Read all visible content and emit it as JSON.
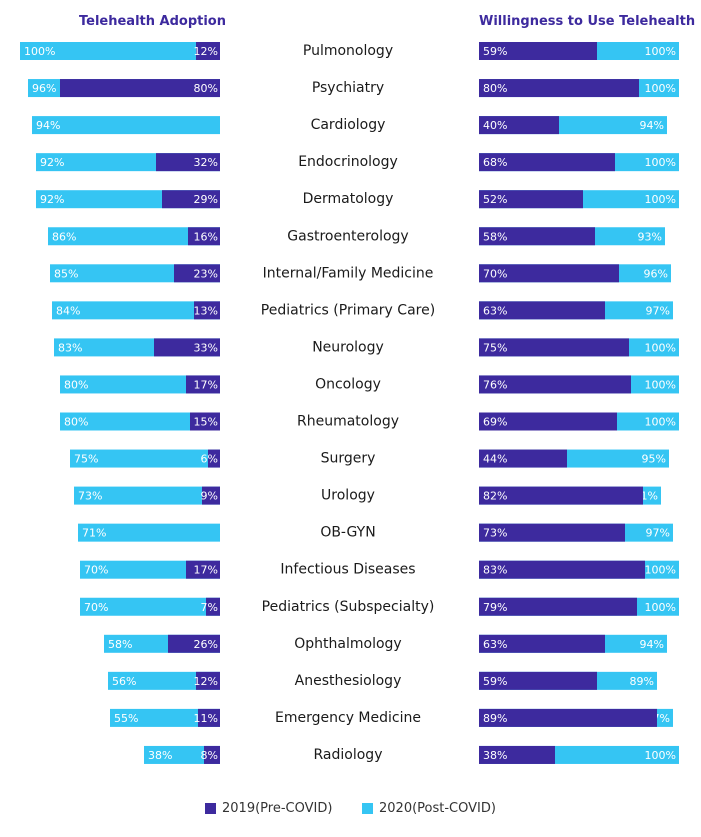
{
  "chart_data": [
    {
      "type": "bar",
      "orientation": "horizontal",
      "title": "Telehealth Adoption",
      "categories": [
        "Pulmonology",
        "Psychiatry",
        "Cardiology",
        "Endocrinology",
        "Dermatology",
        "Gastroenterology",
        "Internal/Family Medicine",
        "Pediatrics (Primary Care)",
        "Neurology",
        "Oncology",
        "Rheumatology",
        "Surgery",
        "Urology",
        "OB-GYN",
        "Infectious Diseases",
        "Pediatrics (Subspecialty)",
        "Ophthalmology",
        "Anesthesiology",
        "Emergency Medicine",
        "Radiology"
      ],
      "series": [
        {
          "name": "2019(Pre-COVID)",
          "values": [
            12,
            80,
            null,
            32,
            29,
            16,
            23,
            13,
            33,
            17,
            15,
            6,
            9,
            null,
            17,
            7,
            26,
            12,
            11,
            8
          ]
        },
        {
          "name": "2020(Post-COVID)",
          "values": [
            100,
            96,
            94,
            92,
            92,
            86,
            85,
            84,
            83,
            80,
            80,
            75,
            73,
            71,
            70,
            70,
            58,
            56,
            55,
            38
          ]
        }
      ],
      "xlim": [
        0,
        100
      ]
    },
    {
      "type": "bar",
      "orientation": "horizontal",
      "title": "Willingness to Use Telehealth",
      "categories": [
        "Pulmonology",
        "Psychiatry",
        "Cardiology",
        "Endocrinology",
        "Dermatology",
        "Gastroenterology",
        "Internal/Family Medicine",
        "Pediatrics (Primary Care)",
        "Neurology",
        "Oncology",
        "Rheumatology",
        "Surgery",
        "Urology",
        "OB-GYN",
        "Infectious Diseases",
        "Pediatrics (Subspecialty)",
        "Ophthalmology",
        "Anesthesiology",
        "Emergency Medicine",
        "Radiology"
      ],
      "series": [
        {
          "name": "2019(Pre-COVID)",
          "values": [
            59,
            80,
            40,
            68,
            52,
            58,
            70,
            63,
            75,
            76,
            69,
            44,
            82,
            73,
            83,
            79,
            63,
            59,
            89,
            38
          ]
        },
        {
          "name": "2020(Post-COVID)",
          "values": [
            100,
            100,
            94,
            100,
            100,
            93,
            96,
            97,
            100,
            100,
            100,
            95,
            91,
            97,
            100,
            100,
            94,
            89,
            97,
            100
          ]
        }
      ],
      "xlim": [
        0,
        100
      ]
    }
  ],
  "legend": [
    {
      "label": "2019(Pre-COVID)",
      "color": "#3d2a9e"
    },
    {
      "label": "2020(Post-COVID)",
      "color": "#35c5f3"
    }
  ],
  "colors": {
    "pre": "#3d2a9e",
    "post": "#35c5f3"
  }
}
